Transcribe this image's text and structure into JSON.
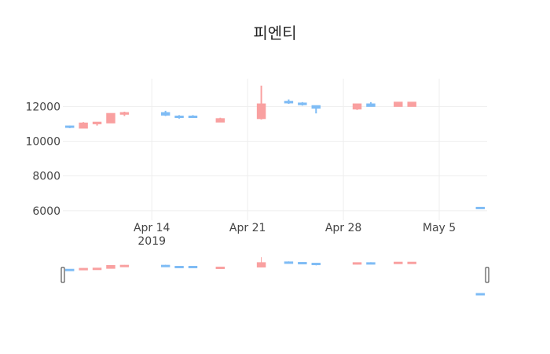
{
  "chart_data": {
    "type": "candlestick",
    "title": "피엔티",
    "xlabel": "",
    "ylabel": "",
    "ylim": [
      5450,
      13600
    ],
    "y_ticks": [
      6000,
      8000,
      10000,
      12000
    ],
    "x_ticks": [
      {
        "date": "2019-04-14",
        "label": "Apr 14",
        "sublabel": "2019"
      },
      {
        "date": "2019-04-21",
        "label": "Apr 21",
        "sublabel": ""
      },
      {
        "date": "2019-04-28",
        "label": "Apr 28",
        "sublabel": ""
      },
      {
        "date": "2019-05-05",
        "label": "May 5",
        "sublabel": ""
      }
    ],
    "x_range": [
      "2019-04-07T12:00",
      "2019-05-08T12:00"
    ],
    "grid": true,
    "rangeslider": true,
    "colors": {
      "increasing": "#7FBCF5",
      "decreasing": "#F9A0A0"
    },
    "series": [
      {
        "date": "2019-04-08",
        "open": 10800,
        "high": 10900,
        "low": 10750,
        "close": 10880
      },
      {
        "date": "2019-04-09",
        "open": 11050,
        "high": 11100,
        "low": 10750,
        "close": 10750
      },
      {
        "date": "2019-04-10",
        "open": 11100,
        "high": 11100,
        "low": 10900,
        "close": 11000
      },
      {
        "date": "2019-04-11",
        "open": 11600,
        "high": 11600,
        "low": 11050,
        "close": 11050
      },
      {
        "date": "2019-04-12",
        "open": 11650,
        "high": 11700,
        "low": 11450,
        "close": 11550
      },
      {
        "date": "2019-04-15",
        "open": 11500,
        "high": 11750,
        "low": 11450,
        "close": 11650
      },
      {
        "date": "2019-04-16",
        "open": 11400,
        "high": 11500,
        "low": 11300,
        "close": 11450
      },
      {
        "date": "2019-04-17",
        "open": 11400,
        "high": 11500,
        "low": 11380,
        "close": 11450
      },
      {
        "date": "2019-04-19",
        "open": 11300,
        "high": 11350,
        "low": 11100,
        "close": 11100
      },
      {
        "date": "2019-04-22",
        "open": 12150,
        "high": 13200,
        "low": 11250,
        "close": 11300
      },
      {
        "date": "2019-04-24",
        "open": 12200,
        "high": 12400,
        "low": 12150,
        "close": 12300
      },
      {
        "date": "2019-04-25",
        "open": 12100,
        "high": 12250,
        "low": 12050,
        "close": 12200
      },
      {
        "date": "2019-04-26",
        "open": 11900,
        "high": 12050,
        "low": 11600,
        "close": 12050
      },
      {
        "date": "2019-04-29",
        "open": 12150,
        "high": 12150,
        "low": 11800,
        "close": 11850
      },
      {
        "date": "2019-04-30",
        "open": 12000,
        "high": 12250,
        "low": 12000,
        "close": 12150
      },
      {
        "date": "2019-05-02",
        "open": 12250,
        "high": 12250,
        "low": 12000,
        "close": 12000
      },
      {
        "date": "2019-05-03",
        "open": 12250,
        "high": 12250,
        "low": 12000,
        "close": 12000
      },
      {
        "date": "2019-05-08",
        "open": 6150,
        "high": 6220,
        "low": 6130,
        "close": 6200
      }
    ]
  }
}
